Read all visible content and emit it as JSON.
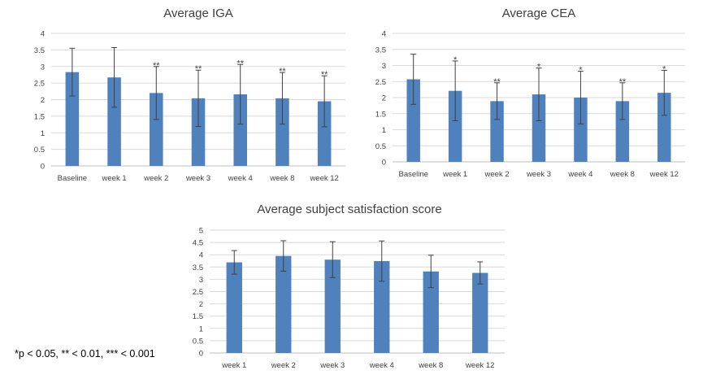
{
  "chart_data": [
    {
      "type": "bar",
      "title": "Average IGA",
      "categories": [
        "Baseline",
        "week 1",
        "week 2",
        "week 3",
        "week 4",
        "week 8",
        "week 12"
      ],
      "values": [
        2.83,
        2.67,
        2.2,
        2.04,
        2.16,
        2.04,
        1.95
      ],
      "errors": [
        0.72,
        0.9,
        0.8,
        0.85,
        0.9,
        0.78,
        0.77
      ],
      "significance": [
        "",
        "",
        "**",
        "**",
        "**",
        "**",
        "**"
      ],
      "ylim": [
        0,
        4
      ],
      "yticks": [
        "0",
        "0.5",
        "1",
        "1.5",
        "2",
        "2.5",
        "3",
        "3.5",
        "4"
      ],
      "grid": true,
      "legend": "none"
    },
    {
      "type": "bar",
      "title": "Average CEA",
      "categories": [
        "Baseline",
        "week 1",
        "week 2",
        "week 3",
        "week 4",
        "week 8",
        "week 12"
      ],
      "values": [
        2.57,
        2.21,
        1.89,
        2.1,
        2.0,
        1.89,
        2.15
      ],
      "errors": [
        0.78,
        0.93,
        0.57,
        0.82,
        0.82,
        0.57,
        0.7
      ],
      "significance": [
        "",
        "*",
        "**",
        "*",
        "*",
        "**",
        "*"
      ],
      "ylim": [
        0,
        4
      ],
      "yticks": [
        "0",
        "0.5",
        "1",
        "1.5",
        "2",
        "2.5",
        "3",
        "3.5",
        "4"
      ],
      "grid": true,
      "legend": "none"
    },
    {
      "type": "bar",
      "title": "Average subject satisfaction score",
      "categories": [
        "week 1",
        "week 2",
        "week 3",
        "week 4",
        "week 8",
        "week 12"
      ],
      "values": [
        3.69,
        3.95,
        3.8,
        3.74,
        3.32,
        3.26
      ],
      "errors": [
        0.48,
        0.62,
        0.73,
        0.82,
        0.66,
        0.45
      ],
      "significance": [
        "",
        "",
        "",
        "",
        "",
        ""
      ],
      "ylim": [
        0,
        5
      ],
      "yticks": [
        "0",
        "0.5",
        "1",
        "1.5",
        "2",
        "2.5",
        "3",
        "3.5",
        "4",
        "4.5",
        "5"
      ],
      "grid": true,
      "legend": "none"
    }
  ],
  "footnote": "*p < 0.05, ** < 0.01, *** < 0.001"
}
